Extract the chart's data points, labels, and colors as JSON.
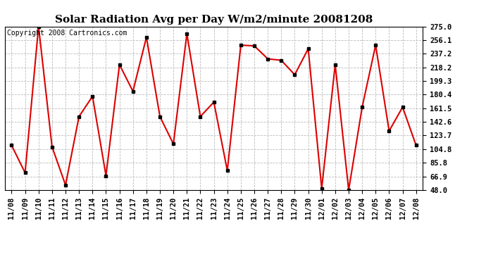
{
  "title": "Solar Radiation Avg per Day W/m2/minute 20081208",
  "copyright": "Copyright 2008 Cartronics.com",
  "x_labels": [
    "11/08",
    "11/09",
    "11/10",
    "11/11",
    "11/12",
    "11/13",
    "11/14",
    "11/15",
    "11/16",
    "11/17",
    "11/18",
    "11/19",
    "11/20",
    "11/21",
    "11/22",
    "11/23",
    "11/24",
    "11/25",
    "11/26",
    "11/27",
    "11/28",
    "11/29",
    "11/30",
    "12/01",
    "12/02",
    "12/03",
    "12/04",
    "12/05",
    "12/06",
    "12/07",
    "12/08"
  ],
  "y_values": [
    110,
    72,
    275,
    108,
    55,
    150,
    178,
    68,
    222,
    185,
    260,
    150,
    112,
    265,
    150,
    170,
    75,
    249,
    248,
    230,
    228,
    208,
    244,
    50,
    222,
    48,
    163,
    249,
    130,
    163,
    110
  ],
  "y_min": 48.0,
  "y_max": 275.0,
  "y_ticks": [
    48.0,
    66.9,
    85.8,
    104.8,
    123.7,
    142.6,
    161.5,
    180.4,
    199.3,
    218.2,
    237.2,
    256.1,
    275.0
  ],
  "line_color": "#dd0000",
  "marker_color": "#000000",
  "bg_color": "#ffffff",
  "grid_color": "#bbbbbb",
  "title_fontsize": 11,
  "tick_fontsize": 7.5,
  "copyright_fontsize": 7
}
